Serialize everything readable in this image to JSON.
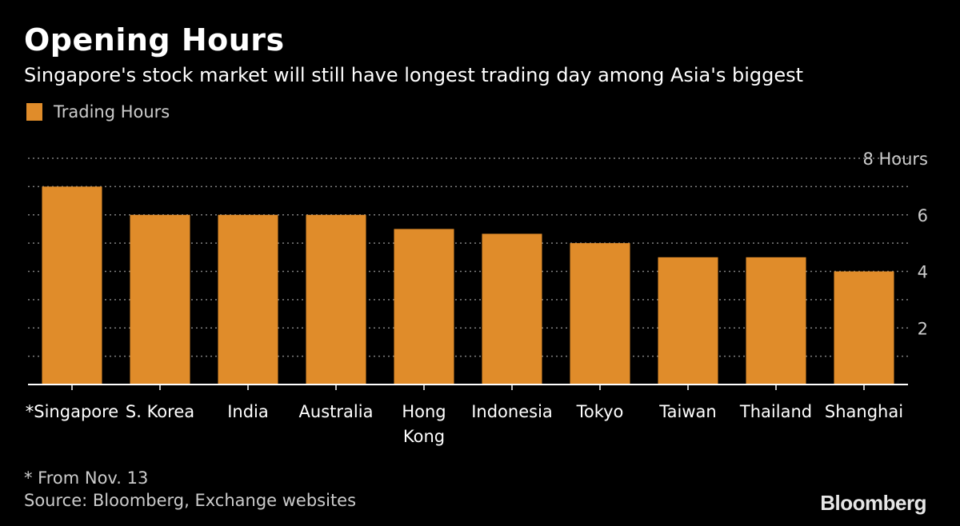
{
  "chart_data": {
    "type": "bar",
    "title": "Opening Hours",
    "subtitle": "Singapore's stock market will still have longest trading day among Asia's biggest",
    "categories": [
      [
        "*Singapore"
      ],
      [
        "S. Korea"
      ],
      [
        "India"
      ],
      [
        "Australia"
      ],
      [
        "Hong",
        "Kong"
      ],
      [
        "Indonesia"
      ],
      [
        "Tokyo"
      ],
      [
        "Taiwan"
      ],
      [
        "Thailand"
      ],
      [
        "Shanghai"
      ]
    ],
    "series": [
      {
        "name": "Trading Hours",
        "values": [
          7,
          6,
          6,
          6,
          5.5,
          5.33,
          5,
          4.5,
          4.5,
          4
        ]
      }
    ],
    "ylim": [
      0,
      8
    ],
    "yticks": [
      {
        "value": 8,
        "label": "8 Hours"
      },
      {
        "value": 6,
        "label": "6"
      },
      {
        "value": 4,
        "label": "4"
      },
      {
        "value": 2,
        "label": "2"
      }
    ],
    "gridlines": [
      1,
      2,
      3,
      4,
      5,
      6,
      7,
      8
    ],
    "xlabel": "",
    "ylabel": "",
    "legend_position": "top-left",
    "bar_color": "#e08c2a",
    "grid_color": "#808080"
  },
  "footnote": "* From Nov. 13",
  "source": "Source: Bloomberg, Exchange websites",
  "brand": "Bloomberg"
}
